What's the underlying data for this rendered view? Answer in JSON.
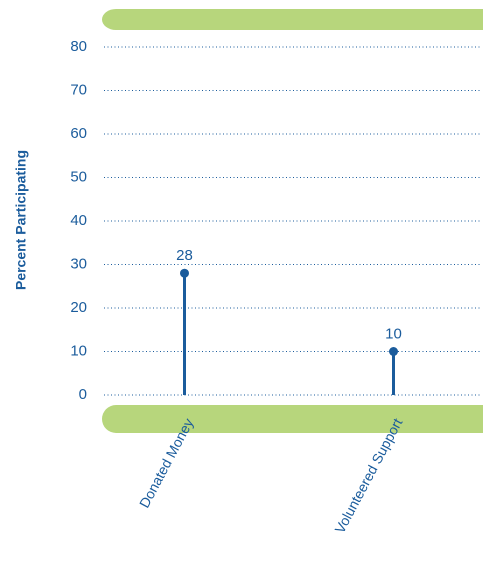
{
  "chart_data": {
    "type": "lollipop",
    "y_label": "Percent Participating",
    "categories": [
      "Donated Money",
      "Volunteered Support"
    ],
    "values": [
      28,
      10
    ],
    "color": "#1b5c9c",
    "band_color": "#b7d67c",
    "ylim": [
      0,
      80
    ],
    "yticks": [
      0,
      10,
      20,
      30,
      40,
      50,
      60,
      70,
      80
    ],
    "grid": true
  }
}
